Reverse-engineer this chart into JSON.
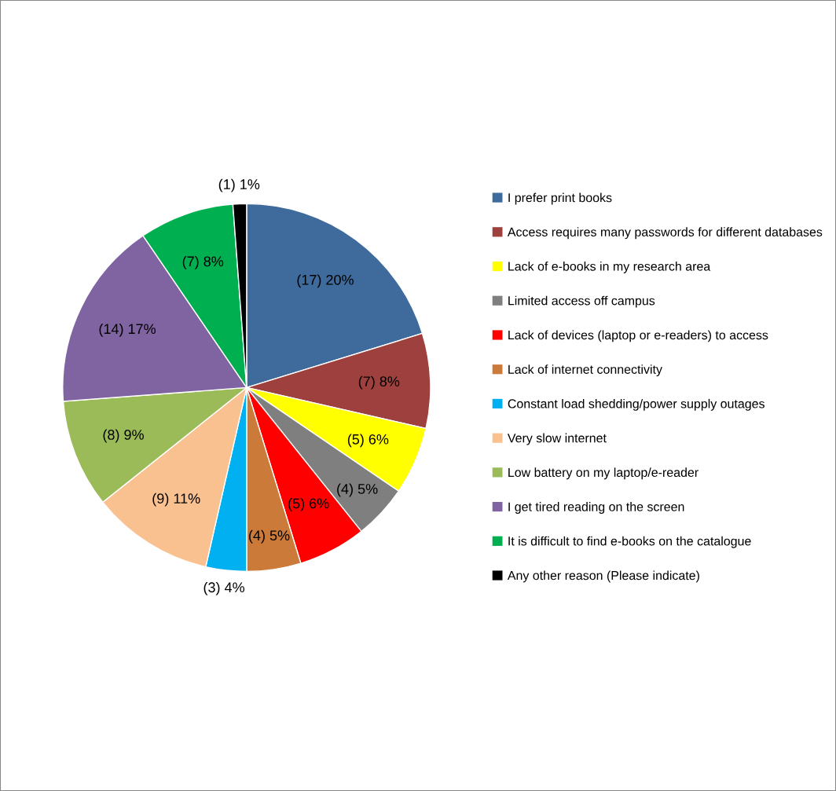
{
  "chart_data": {
    "type": "pie",
    "categories": [
      "I prefer print books",
      "Access requires many passwords for different databases",
      "Lack of e-books in my research area",
      "Limited access off campus",
      "Lack of devices (laptop or e-readers) to access",
      "Lack of internet connectivity",
      "Constant load shedding/power supply outages",
      "Very slow internet",
      "Low battery on my laptop/e-reader",
      "I get tired reading on the screen",
      "It is difficult to find e-books on the catalogue",
      "Any other reason (Please indicate)"
    ],
    "values": [
      17,
      7,
      5,
      4,
      5,
      4,
      3,
      9,
      8,
      14,
      7,
      1
    ],
    "value_labels": [
      "(17) 20%",
      "(7) 8%",
      "(5) 6%",
      "(4) 5%",
      "(5) 6%",
      "(4) 5%",
      "(3) 4%",
      "(9) 11%",
      "(8) 9%",
      "(14) 17%",
      "(7) 8%",
      "(1) 1%"
    ],
    "colors": [
      "#3f6a9c",
      "#9e413e",
      "#ffff00",
      "#7f7f7f",
      "#ff0000",
      "#cc7a3a",
      "#00b0f0",
      "#f9c090",
      "#9bbb59",
      "#8064a2",
      "#00b050",
      "#000000"
    ],
    "legend": "right"
  }
}
